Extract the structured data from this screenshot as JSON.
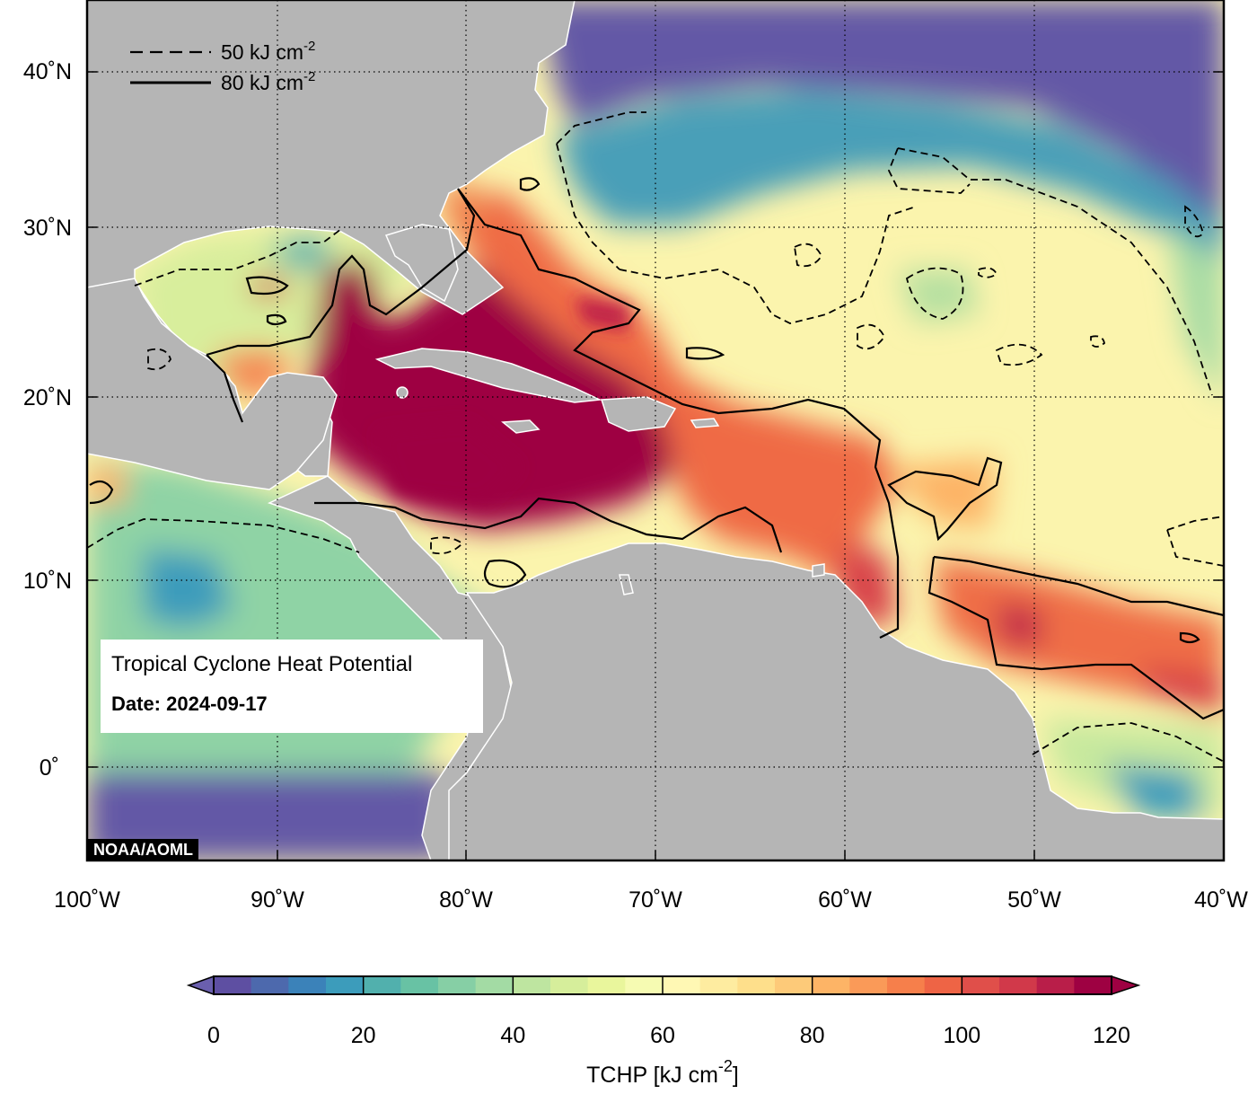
{
  "title_box": {
    "title": "Tropical Cyclone Heat Potential",
    "date_line": "Date: 2024-09-17"
  },
  "credit": "NOAA/AOML",
  "legend": {
    "items": [
      {
        "style": "dashed",
        "label": "50 kJ cm",
        "sup": "-2"
      },
      {
        "style": "solid",
        "label": "80 kJ cm",
        "sup": "-2"
      }
    ]
  },
  "axes": {
    "lon_ticks": [
      "100˚W",
      "90˚W",
      "80˚W",
      "70˚W",
      "60˚W",
      "50˚W",
      "40˚W"
    ],
    "lat_ticks": [
      "40˚N",
      "30˚N",
      "20˚N",
      "10˚N",
      "0˚"
    ]
  },
  "colorbar": {
    "ticks": [
      "0",
      "20",
      "40",
      "60",
      "80",
      "100",
      "120"
    ],
    "label": "TCHP [kJ cm",
    "label_sup": "-2",
    "label_end": "]",
    "colors": [
      "#5e4fa2",
      "#4d69ad",
      "#3b82b9",
      "#3c9cbb",
      "#51b0ad",
      "#68c2a4",
      "#86cfa5",
      "#a3dba4",
      "#bee5a0",
      "#d6ee9b",
      "#e9f69c",
      "#f6fbb2",
      "#fff8b4",
      "#feeca0",
      "#fedf8b",
      "#fdca79",
      "#fdb466",
      "#fa9a58",
      "#f67f4b",
      "#ee6445",
      "#e04f4a",
      "#d1394a",
      "#b91e49",
      "#9e0142"
    ],
    "under_color": "#6a5fae",
    "over_color": "#9e0142"
  },
  "map_colors": {
    "land": "#b5b5b5",
    "coast": "#ffffff",
    "ocean_low": "#6459a6",
    "contour": "#000000"
  }
}
